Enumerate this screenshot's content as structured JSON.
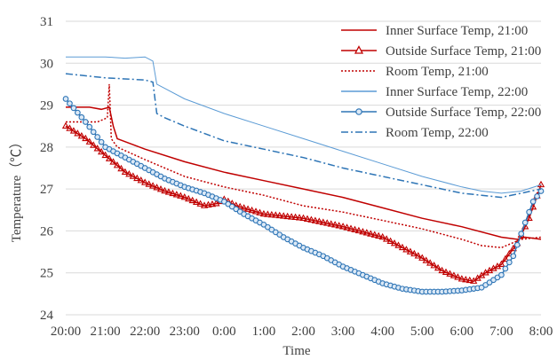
{
  "chart_data": {
    "type": "line",
    "xlabel": "Time",
    "ylabel": "Temperature（℃）",
    "x_ticks": [
      "20:00",
      "21:00",
      "22:00",
      "23:00",
      "0:00",
      "1:00",
      "2:00",
      "3:00",
      "4:00",
      "5:00",
      "6:00",
      "7:00",
      "8:00"
    ],
    "y_ticks": [
      "24",
      "25",
      "26",
      "27",
      "28",
      "29",
      "30",
      "31"
    ],
    "ylim": [
      24,
      31
    ],
    "x_range_hours": [
      0,
      12
    ],
    "grid": "horizontal",
    "legend_position": "top-right",
    "series": [
      {
        "name": "Inner Surface Temp, 21:00",
        "color": "#c00000",
        "style": "solid",
        "marker": "none",
        "points": [
          [
            0,
            28.95
          ],
          [
            0.6,
            28.95
          ],
          [
            0.9,
            28.9
          ],
          [
            1.1,
            28.95
          ],
          [
            1.2,
            28.5
          ],
          [
            1.3,
            28.2
          ],
          [
            2,
            27.95
          ],
          [
            3,
            27.65
          ],
          [
            4,
            27.4
          ],
          [
            5,
            27.2
          ],
          [
            6,
            27.0
          ],
          [
            7,
            26.8
          ],
          [
            8,
            26.55
          ],
          [
            9,
            26.3
          ],
          [
            10,
            26.1
          ],
          [
            11,
            25.85
          ],
          [
            11.4,
            25.8
          ],
          [
            11.6,
            25.85
          ],
          [
            12,
            25.8
          ]
        ]
      },
      {
        "name": "Outside Surface Temp, 21:00",
        "color": "#c00000",
        "style": "solid",
        "marker": "triangle",
        "points": [
          [
            0,
            28.5
          ],
          [
            0.5,
            28.2
          ],
          [
            1,
            27.8
          ],
          [
            1.5,
            27.4
          ],
          [
            2,
            27.15
          ],
          [
            2.5,
            26.95
          ],
          [
            3,
            26.8
          ],
          [
            3.5,
            26.6
          ],
          [
            3.8,
            26.65
          ],
          [
            4,
            26.75
          ],
          [
            4.3,
            26.6
          ],
          [
            5,
            26.4
          ],
          [
            6,
            26.3
          ],
          [
            7,
            26.1
          ],
          [
            8,
            25.85
          ],
          [
            8.5,
            25.6
          ],
          [
            9,
            25.35
          ],
          [
            9.5,
            25.05
          ],
          [
            10,
            24.85
          ],
          [
            10.3,
            24.8
          ],
          [
            10.6,
            25.0
          ],
          [
            11,
            25.2
          ],
          [
            11.4,
            25.7
          ],
          [
            11.7,
            26.3
          ],
          [
            12,
            27.1
          ]
        ]
      },
      {
        "name": "Room Temp, 21:00",
        "color": "#c00000",
        "style": "dotted",
        "marker": "none",
        "points": [
          [
            0,
            28.6
          ],
          [
            0.8,
            28.6
          ],
          [
            1.05,
            28.7
          ],
          [
            1.1,
            29.5
          ],
          [
            1.15,
            28.2
          ],
          [
            1.3,
            28.0
          ],
          [
            2,
            27.7
          ],
          [
            3,
            27.3
          ],
          [
            4,
            27.05
          ],
          [
            5,
            26.85
          ],
          [
            6,
            26.6
          ],
          [
            7,
            26.45
          ],
          [
            8,
            26.25
          ],
          [
            9,
            26.05
          ],
          [
            10,
            25.8
          ],
          [
            10.5,
            25.65
          ],
          [
            11,
            25.6
          ],
          [
            11.5,
            25.8
          ],
          [
            12,
            25.85
          ]
        ]
      },
      {
        "name": "Inner Surface Temp, 22:00",
        "color": "#5b9bd5",
        "style": "solid",
        "marker": "none",
        "points": [
          [
            0,
            30.15
          ],
          [
            1,
            30.15
          ],
          [
            1.5,
            30.12
          ],
          [
            2,
            30.15
          ],
          [
            2.2,
            30.05
          ],
          [
            2.3,
            29.5
          ],
          [
            2.5,
            29.4
          ],
          [
            3,
            29.15
          ],
          [
            4,
            28.8
          ],
          [
            5,
            28.5
          ],
          [
            6,
            28.2
          ],
          [
            7,
            27.9
          ],
          [
            8,
            27.6
          ],
          [
            9,
            27.3
          ],
          [
            10,
            27.05
          ],
          [
            10.5,
            26.95
          ],
          [
            11,
            26.9
          ],
          [
            11.5,
            26.95
          ],
          [
            12,
            27.1
          ]
        ]
      },
      {
        "name": "Outside Surface Temp, 22:00",
        "color": "#2e75b6",
        "style": "solid",
        "marker": "circle",
        "points": [
          [
            0,
            29.15
          ],
          [
            0.5,
            28.6
          ],
          [
            1,
            28.0
          ],
          [
            1.5,
            27.75
          ],
          [
            2,
            27.5
          ],
          [
            2.5,
            27.25
          ],
          [
            3,
            27.05
          ],
          [
            3.5,
            26.9
          ],
          [
            4,
            26.7
          ],
          [
            4.5,
            26.4
          ],
          [
            5,
            26.15
          ],
          [
            5.5,
            25.85
          ],
          [
            6,
            25.6
          ],
          [
            6.5,
            25.4
          ],
          [
            7,
            25.15
          ],
          [
            7.5,
            24.95
          ],
          [
            8,
            24.75
          ],
          [
            8.5,
            24.62
          ],
          [
            9,
            24.55
          ],
          [
            9.5,
            24.55
          ],
          [
            10,
            24.58
          ],
          [
            10.5,
            24.65
          ],
          [
            11,
            24.95
          ],
          [
            11.3,
            25.4
          ],
          [
            11.6,
            26.2
          ],
          [
            11.8,
            26.7
          ],
          [
            12,
            26.95
          ]
        ]
      },
      {
        "name": "Room Temp, 22:00",
        "color": "#2e75b6",
        "style": "dashdot",
        "marker": "none",
        "points": [
          [
            0,
            29.75
          ],
          [
            1,
            29.65
          ],
          [
            2,
            29.6
          ],
          [
            2.2,
            29.55
          ],
          [
            2.3,
            28.8
          ],
          [
            2.5,
            28.7
          ],
          [
            3,
            28.5
          ],
          [
            4,
            28.15
          ],
          [
            5,
            27.95
          ],
          [
            6,
            27.75
          ],
          [
            7,
            27.5
          ],
          [
            8,
            27.3
          ],
          [
            9,
            27.1
          ],
          [
            10,
            26.9
          ],
          [
            10.5,
            26.85
          ],
          [
            11,
            26.8
          ],
          [
            11.5,
            26.9
          ],
          [
            12,
            27.0
          ]
        ]
      }
    ]
  }
}
